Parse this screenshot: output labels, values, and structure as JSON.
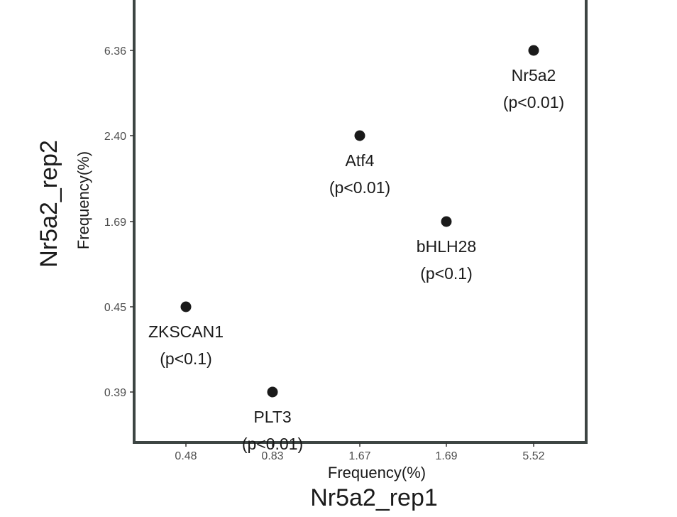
{
  "chart_data": {
    "type": "scatter",
    "x_ticks": [
      "0.48",
      "0.83",
      "1.67",
      "1.69",
      "5.52"
    ],
    "y_ticks": [
      "0.39",
      "0.45",
      "1.69",
      "2.40",
      "6.36"
    ],
    "xlabel": "Frequency(%)",
    "xlabel_group": "Nr5a2_rep1",
    "ylabel": "Frequency(%)",
    "ylabel_group": "Nr5a2_rep2",
    "points": [
      {
        "name": "ZKSCAN1",
        "pvalue": "(p<0.1)",
        "x": 0.48,
        "y": 0.45
      },
      {
        "name": "PLT3",
        "pvalue": "(p<0.01)",
        "x": 0.83,
        "y": 0.39
      },
      {
        "name": "Atf4",
        "pvalue": "(p<0.01)",
        "x": 1.67,
        "y": 2.4
      },
      {
        "name": "bHLH28",
        "pvalue": "(p<0.1)",
        "x": 1.69,
        "y": 1.69
      },
      {
        "name": "Nr5a2",
        "pvalue": "(p<0.01)",
        "x": 5.52,
        "y": 6.36
      }
    ],
    "grid": false,
    "colors": {
      "point": "#1a1a1a",
      "frame": "#3d4543"
    }
  }
}
